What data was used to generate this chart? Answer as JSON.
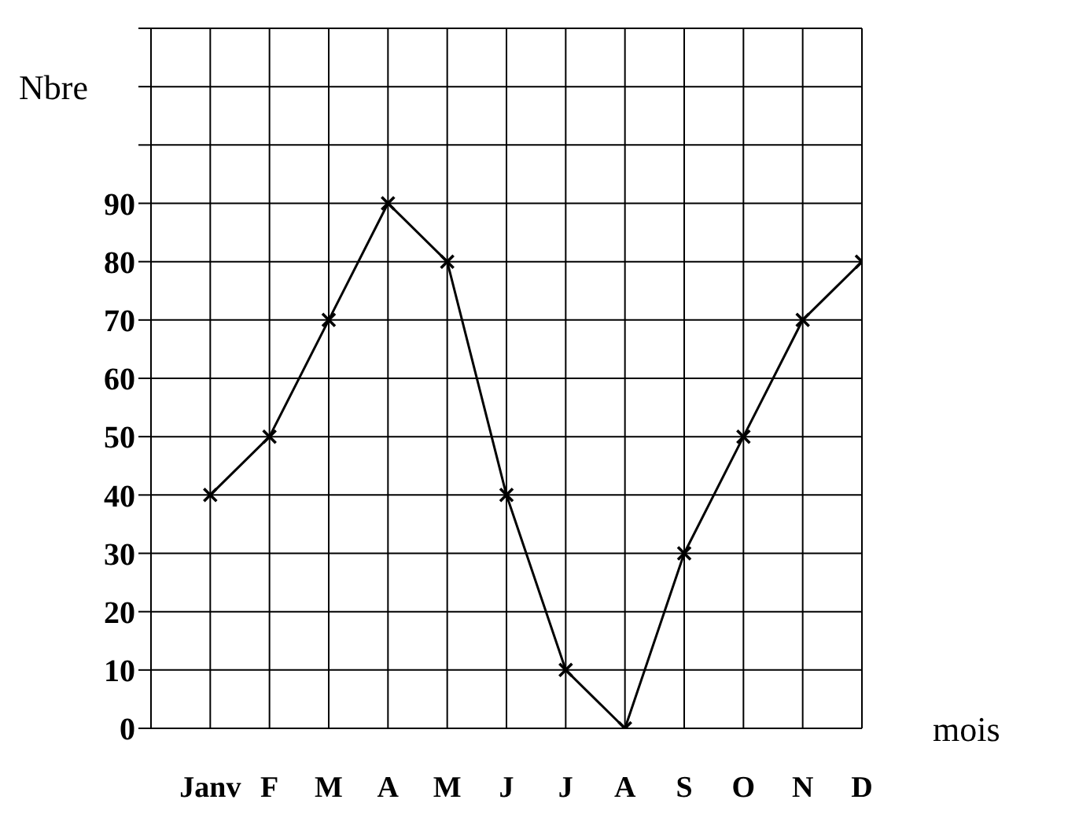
{
  "chart_data": {
    "type": "line",
    "ylabel": "Nbre",
    "xlabel": "mois",
    "categories": [
      "Janv",
      "F",
      "M",
      "A",
      "M",
      "J",
      "J",
      "A",
      "S",
      "O",
      "N",
      "D"
    ],
    "series": [
      {
        "color": "#000000",
        "values": [
          40,
          50,
          70,
          90,
          80,
          40,
          10,
          0,
          30,
          50,
          70,
          80
        ]
      }
    ],
    "ylim": [
      0,
      120
    ],
    "yticks": [
      0,
      10,
      20,
      30,
      40,
      50,
      60,
      70,
      80,
      90,
      {
        "value": 100,
        "label": null
      },
      {
        "value": 110,
        "label": null
      },
      {
        "value": 120,
        "label": null
      }
    ],
    "grid": true,
    "marker": "cross",
    "line_style": "solid"
  }
}
